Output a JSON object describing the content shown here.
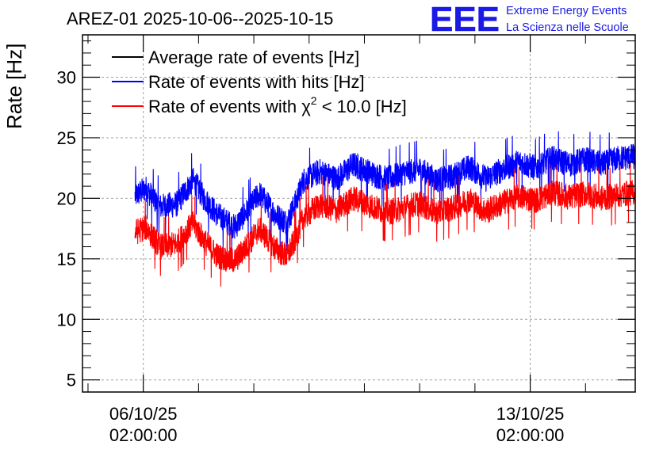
{
  "chart_data": {
    "type": "line",
    "title": "AREZ-01 2025-10-06--2025-10-15",
    "ylabel": "Rate [Hz]",
    "xlabel": "",
    "ylim": [
      4,
      33.5
    ],
    "yticks": [
      5,
      10,
      15,
      20,
      25,
      30
    ],
    "xlim_days": [
      -1.1,
      8.9
    ],
    "xticks": [
      {
        "day": 0,
        "line1": "06/10/25",
        "line2": "02:00:00"
      },
      {
        "day": 7,
        "line1": "13/10/25",
        "line2": "02:00:00"
      }
    ],
    "grid": true,
    "legend_position": "top-left",
    "series": [
      {
        "name": "Average rate of events [Hz]",
        "legend_label": "Average rate of events [Hz]",
        "color": "#000000",
        "x": [],
        "values": []
      },
      {
        "name": "Rate of events with hits [Hz]",
        "legend_label": "Rate of events with hits [Hz]",
        "color": "#0000ff",
        "noise_band": 1.1,
        "x": [
          -0.15,
          0.05,
          0.3,
          0.6,
          0.9,
          1.1,
          1.35,
          1.65,
          1.9,
          2.1,
          2.4,
          2.6,
          2.75,
          2.9,
          3.2,
          3.5,
          3.8,
          4.1,
          4.4,
          4.7,
          5.0,
          5.3,
          5.6,
          5.9,
          6.2,
          6.5,
          6.8,
          7.1,
          7.4,
          7.7,
          8.0,
          8.3,
          8.6,
          9.0
        ],
        "values": [
          20.2,
          20.8,
          19.3,
          19.5,
          21.5,
          20.0,
          18.6,
          17.6,
          19.1,
          20.4,
          18.6,
          18.0,
          19.6,
          21.5,
          22.2,
          21.6,
          22.8,
          22.1,
          21.6,
          22.1,
          22.4,
          21.5,
          21.8,
          22.6,
          21.6,
          22.4,
          23.0,
          22.5,
          23.3,
          22.8,
          23.2,
          22.8,
          23.3,
          23.5
        ]
      },
      {
        "name": "Rate of events with chi2 < 10.0 [Hz]",
        "legend_label_pre": "Rate of events with ",
        "legend_label_chi": "χ",
        "legend_label_sup": "2",
        "legend_label_post": " < 10.0 [Hz]",
        "color": "#ff0000",
        "noise_band": 1.1,
        "x": [
          -0.15,
          0.05,
          0.3,
          0.6,
          0.9,
          1.1,
          1.35,
          1.65,
          1.9,
          2.1,
          2.4,
          2.6,
          2.75,
          2.9,
          3.2,
          3.5,
          3.8,
          4.1,
          4.4,
          4.7,
          5.0,
          5.3,
          5.6,
          5.9,
          6.2,
          6.5,
          6.8,
          7.1,
          7.4,
          7.7,
          8.0,
          8.3,
          8.6,
          9.0
        ],
        "values": [
          17.2,
          17.6,
          16.0,
          16.2,
          18.0,
          16.5,
          15.2,
          14.8,
          16.2,
          17.5,
          15.8,
          15.2,
          16.6,
          18.4,
          19.5,
          19.0,
          20.0,
          19.4,
          18.8,
          19.2,
          19.6,
          18.8,
          19.2,
          19.9,
          18.9,
          19.6,
          20.2,
          19.8,
          20.5,
          20.1,
          20.4,
          20.0,
          20.3,
          20.6
        ]
      }
    ]
  },
  "logo": {
    "mark": "EEE",
    "line1": "Extreme Energy Events",
    "line2": "La Scienza nelle Scuole",
    "color": "#1a1ae6"
  }
}
